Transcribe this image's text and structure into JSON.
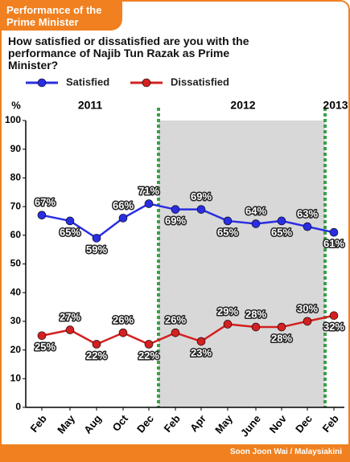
{
  "chart_data": {
    "type": "line",
    "header": "Performance of the Prime Minister",
    "title": "How satisfied or dissatisfied are you with the performance of Najib Tun Razak as Prime Minister?",
    "y_label": "%",
    "source": "Soon Joon Wai / Malaysiakini",
    "years": [
      "2011",
      "2012",
      "2013"
    ],
    "categories": [
      "Feb",
      "May",
      "Aug",
      "Oct",
      "Dec",
      "Feb",
      "Apr",
      "May",
      "June",
      "Nov",
      "Dec",
      "Feb"
    ],
    "series": [
      {
        "name": "Satisfied",
        "color": "#2a2ee0",
        "values": [
          67,
          65,
          59,
          66,
          71,
          69,
          69,
          65,
          64,
          65,
          63,
          61
        ],
        "value_labels": [
          "67%",
          "65%",
          "59%",
          "66%",
          "71%",
          "69%",
          "69%",
          "65%",
          "64%",
          "65%",
          "63%",
          "61%"
        ]
      },
      {
        "name": "Dissatisfied",
        "color": "#d42020",
        "values": [
          25,
          27,
          22,
          26,
          22,
          26,
          23,
          29,
          28,
          28,
          30,
          32
        ],
        "value_labels": [
          "25%",
          "27%",
          "22%",
          "26%",
          "22%",
          "26%",
          "23%",
          "29%",
          "28%",
          "28%",
          "30%",
          "32%"
        ]
      }
    ],
    "ylim": [
      0,
      100
    ],
    "yticks": [
      0,
      10,
      20,
      30,
      40,
      50,
      60,
      70,
      80,
      90,
      100
    ],
    "grid": false
  }
}
